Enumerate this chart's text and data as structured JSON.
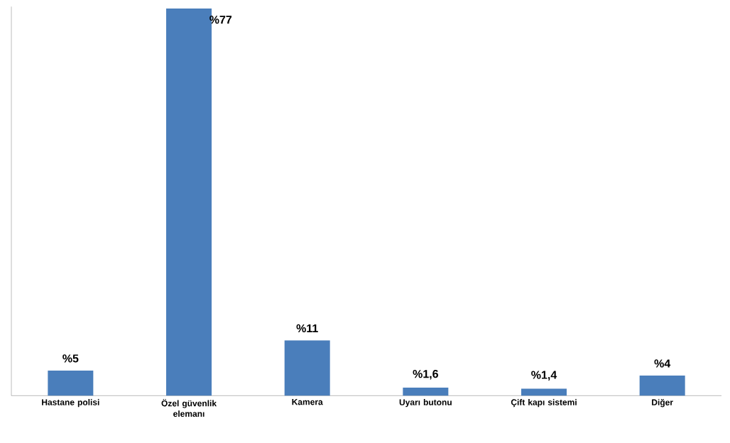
{
  "chart_data": {
    "type": "bar",
    "categories": [
      "Hastane polisi",
      "Özel güvenlik elemanı",
      "Kamera",
      "Uyarı butonu",
      "Çift kapı sistemi",
      "Diğer"
    ],
    "values": [
      5,
      77,
      11,
      1.6,
      1.4,
      4
    ],
    "value_labels": [
      "%5",
      "%77",
      "%11",
      "%1,6",
      "%1,4",
      "%4"
    ],
    "color": "#4a7ebb"
  }
}
